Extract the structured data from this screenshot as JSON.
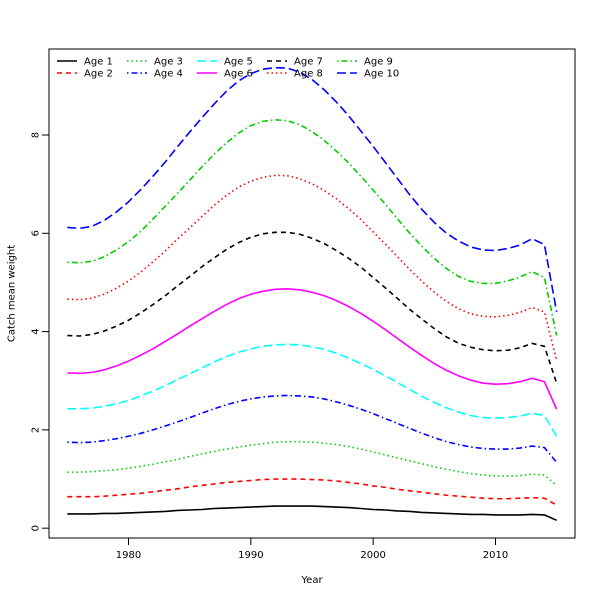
{
  "chart_data": {
    "type": "line",
    "title": "",
    "xlabel": "Year",
    "ylabel": "Catch mean weight",
    "xlim": [
      1973.5,
      2016.5
    ],
    "ylim": [
      -0.2,
      9.75
    ],
    "xticks": [
      1980,
      1990,
      2000,
      2010
    ],
    "yticks": [
      0,
      2,
      4,
      6,
      8
    ],
    "grid": false,
    "legend_position": "top-left",
    "x": [
      1975,
      1976,
      1977,
      1978,
      1979,
      1980,
      1981,
      1982,
      1983,
      1984,
      1985,
      1986,
      1987,
      1988,
      1989,
      1990,
      1991,
      1992,
      1993,
      1994,
      1995,
      1996,
      1997,
      1998,
      1999,
      2000,
      2001,
      2002,
      2003,
      2004,
      2005,
      2006,
      2007,
      2008,
      2009,
      2010,
      2011,
      2012,
      2013,
      2014,
      2015
    ],
    "series": [
      {
        "name": "Age 1",
        "color": "#000000",
        "dash": "solid",
        "values": [
          0.29,
          0.29,
          0.29,
          0.3,
          0.3,
          0.31,
          0.32,
          0.33,
          0.34,
          0.36,
          0.37,
          0.38,
          0.4,
          0.41,
          0.42,
          0.43,
          0.44,
          0.45,
          0.45,
          0.45,
          0.45,
          0.44,
          0.43,
          0.42,
          0.4,
          0.38,
          0.37,
          0.35,
          0.34,
          0.32,
          0.31,
          0.3,
          0.29,
          0.28,
          0.28,
          0.27,
          0.27,
          0.27,
          0.28,
          0.27,
          0.16
        ]
      },
      {
        "name": "Age 2",
        "color": "#ff0000",
        "dash": "dashed",
        "values": [
          0.64,
          0.64,
          0.64,
          0.65,
          0.67,
          0.69,
          0.71,
          0.74,
          0.77,
          0.8,
          0.84,
          0.87,
          0.9,
          0.93,
          0.95,
          0.97,
          0.99,
          1.0,
          1.0,
          1.0,
          0.99,
          0.98,
          0.96,
          0.93,
          0.9,
          0.86,
          0.83,
          0.79,
          0.76,
          0.73,
          0.7,
          0.67,
          0.65,
          0.63,
          0.61,
          0.6,
          0.6,
          0.61,
          0.62,
          0.61,
          0.47
        ]
      },
      {
        "name": "Age 3",
        "color": "#00cd00",
        "dash": "dotted",
        "values": [
          1.14,
          1.14,
          1.15,
          1.17,
          1.19,
          1.22,
          1.26,
          1.3,
          1.35,
          1.4,
          1.46,
          1.51,
          1.56,
          1.61,
          1.65,
          1.69,
          1.72,
          1.75,
          1.76,
          1.76,
          1.75,
          1.73,
          1.7,
          1.66,
          1.61,
          1.55,
          1.49,
          1.43,
          1.37,
          1.31,
          1.25,
          1.2,
          1.15,
          1.11,
          1.08,
          1.06,
          1.06,
          1.07,
          1.1,
          1.08,
          0.87
        ]
      },
      {
        "name": "Age 4",
        "color": "#0000ff",
        "dash": "dotdash",
        "values": [
          1.75,
          1.74,
          1.75,
          1.78,
          1.82,
          1.87,
          1.93,
          2.0,
          2.08,
          2.16,
          2.25,
          2.34,
          2.43,
          2.51,
          2.58,
          2.63,
          2.67,
          2.69,
          2.7,
          2.69,
          2.67,
          2.63,
          2.57,
          2.5,
          2.42,
          2.33,
          2.23,
          2.13,
          2.03,
          1.93,
          1.84,
          1.76,
          1.7,
          1.65,
          1.62,
          1.61,
          1.61,
          1.63,
          1.67,
          1.64,
          1.34
        ]
      },
      {
        "name": "Age 5",
        "color": "#00ffff",
        "dash": "longdash",
        "values": [
          2.43,
          2.43,
          2.44,
          2.48,
          2.53,
          2.6,
          2.69,
          2.79,
          2.9,
          3.02,
          3.14,
          3.26,
          3.38,
          3.49,
          3.58,
          3.65,
          3.7,
          3.73,
          3.74,
          3.73,
          3.69,
          3.64,
          3.56,
          3.46,
          3.35,
          3.23,
          3.1,
          2.96,
          2.82,
          2.68,
          2.56,
          2.45,
          2.36,
          2.29,
          2.25,
          2.24,
          2.25,
          2.28,
          2.34,
          2.29,
          1.87
        ]
      },
      {
        "name": "Age 6",
        "color": "#ff00ff",
        "dash": "solid",
        "values": [
          3.16,
          3.15,
          3.17,
          3.22,
          3.3,
          3.4,
          3.52,
          3.65,
          3.8,
          3.95,
          4.11,
          4.26,
          4.41,
          4.55,
          4.67,
          4.76,
          4.82,
          4.86,
          4.87,
          4.85,
          4.8,
          4.73,
          4.63,
          4.51,
          4.37,
          4.21,
          4.04,
          3.86,
          3.68,
          3.51,
          3.35,
          3.21,
          3.1,
          3.01,
          2.95,
          2.93,
          2.94,
          2.98,
          3.05,
          2.98,
          2.42
        ]
      },
      {
        "name": "Age 7",
        "color": "#000000",
        "dash": "dashed",
        "values": [
          3.92,
          3.91,
          3.94,
          4.01,
          4.11,
          4.23,
          4.38,
          4.55,
          4.73,
          4.93,
          5.12,
          5.32,
          5.5,
          5.67,
          5.81,
          5.92,
          5.99,
          6.02,
          6.02,
          5.98,
          5.9,
          5.79,
          5.65,
          5.49,
          5.31,
          5.1,
          4.89,
          4.67,
          4.45,
          4.25,
          4.06,
          3.89,
          3.76,
          3.68,
          3.63,
          3.61,
          3.62,
          3.67,
          3.76,
          3.7,
          2.95
        ]
      },
      {
        "name": "Age 8",
        "color": "#ff0000",
        "dash": "dotted",
        "values": [
          4.66,
          4.65,
          4.68,
          4.76,
          4.88,
          5.03,
          5.21,
          5.42,
          5.64,
          5.88,
          6.11,
          6.34,
          6.57,
          6.77,
          6.94,
          7.06,
          7.14,
          7.18,
          7.17,
          7.11,
          7.01,
          6.87,
          6.7,
          6.5,
          6.28,
          6.03,
          5.78,
          5.52,
          5.26,
          5.02,
          4.8,
          4.61,
          4.46,
          4.36,
          4.31,
          4.3,
          4.33,
          4.39,
          4.49,
          4.4,
          3.42
        ]
      },
      {
        "name": "Age 9",
        "color": "#00cd00",
        "dash": "dotdash",
        "values": [
          5.41,
          5.4,
          5.43,
          5.52,
          5.66,
          5.83,
          6.04,
          6.29,
          6.55,
          6.81,
          7.08,
          7.35,
          7.61,
          7.84,
          8.04,
          8.19,
          8.28,
          8.31,
          8.29,
          8.21,
          8.07,
          7.89,
          7.67,
          7.43,
          7.16,
          6.88,
          6.59,
          6.29,
          6.0,
          5.73,
          5.49,
          5.28,
          5.12,
          5.02,
          4.98,
          4.98,
          5.03,
          5.11,
          5.22,
          5.1,
          3.92
        ]
      },
      {
        "name": "Age 10",
        "color": "#0000ff",
        "dash": "longdash",
        "values": [
          6.12,
          6.1,
          6.14,
          6.26,
          6.43,
          6.64,
          6.89,
          7.16,
          7.45,
          7.76,
          8.06,
          8.35,
          8.63,
          8.89,
          9.1,
          9.25,
          9.34,
          9.37,
          9.36,
          9.28,
          9.13,
          8.92,
          8.67,
          8.39,
          8.08,
          7.77,
          7.44,
          7.11,
          6.78,
          6.48,
          6.22,
          6.0,
          5.84,
          5.72,
          5.66,
          5.65,
          5.69,
          5.76,
          5.89,
          5.77,
          4.4
        ]
      }
    ]
  }
}
